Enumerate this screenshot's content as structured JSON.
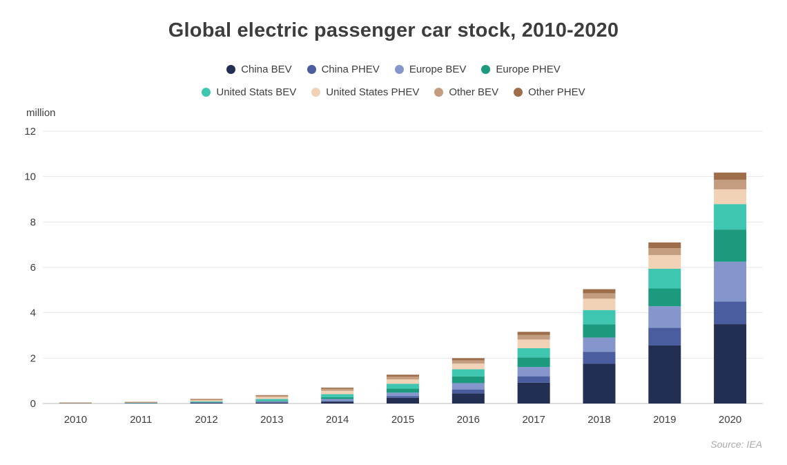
{
  "chart_data": {
    "type": "bar",
    "stacked": true,
    "title": "Global electric passenger car stock, 2010-2020",
    "ylabel": "million",
    "source": "Source: IEA",
    "ylim": [
      0,
      12
    ],
    "yticks": [
      0,
      2,
      4,
      6,
      8,
      10,
      12
    ],
    "grid": true,
    "legend_position": "top",
    "categories": [
      "2010",
      "2011",
      "2012",
      "2013",
      "2014",
      "2015",
      "2016",
      "2017",
      "2018",
      "2019",
      "2020"
    ],
    "series": [
      {
        "name": "China BEV",
        "color": "#232f52",
        "values": [
          0.01,
          0.01,
          0.02,
          0.04,
          0.08,
          0.25,
          0.45,
          0.92,
          1.75,
          2.56,
          3.5
        ]
      },
      {
        "name": "China PHEV",
        "color": "#4a5d9e",
        "values": [
          0.0,
          0.0,
          0.01,
          0.01,
          0.03,
          0.08,
          0.17,
          0.28,
          0.53,
          0.78,
          1.0
        ]
      },
      {
        "name": "Europe BEV",
        "color": "#8496cb",
        "values": [
          0.0,
          0.01,
          0.02,
          0.05,
          0.09,
          0.15,
          0.28,
          0.41,
          0.63,
          0.95,
          1.75
        ]
      },
      {
        "name": "Europe PHEV",
        "color": "#1b9a7e",
        "values": [
          0.0,
          0.0,
          0.01,
          0.03,
          0.08,
          0.18,
          0.29,
          0.42,
          0.58,
          0.78,
          1.42
        ]
      },
      {
        "name": "United Stats BEV",
        "color": "#3ec6b0",
        "values": [
          0.0,
          0.01,
          0.03,
          0.07,
          0.13,
          0.21,
          0.32,
          0.41,
          0.63,
          0.87,
          1.12
        ]
      },
      {
        "name": "United States PHEV",
        "color": "#f1d2b6",
        "values": [
          0.0,
          0.01,
          0.05,
          0.09,
          0.15,
          0.19,
          0.25,
          0.38,
          0.5,
          0.6,
          0.65
        ]
      },
      {
        "name": "Other BEV",
        "color": "#c49d80",
        "values": [
          0.01,
          0.01,
          0.03,
          0.05,
          0.09,
          0.12,
          0.14,
          0.2,
          0.24,
          0.31,
          0.42
        ]
      },
      {
        "name": "Other PHEV",
        "color": "#9e6e4b",
        "values": [
          0.0,
          0.0,
          0.02,
          0.03,
          0.05,
          0.09,
          0.1,
          0.14,
          0.18,
          0.25,
          0.32
        ]
      }
    ]
  }
}
